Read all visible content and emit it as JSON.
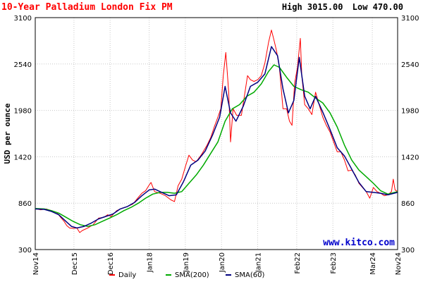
{
  "header": {
    "title": "10-Year Palladium London Fix PM",
    "high_label": "High 3015.00",
    "low_label": "Low 470.00"
  },
  "watermark": "www.kitco.com",
  "chart_data": {
    "type": "line",
    "title": "10-Year Palladium London Fix PM",
    "xlabel": "",
    "ylabel": "USD per ounce",
    "ylim": [
      300,
      3100
    ],
    "xlim": [
      2014.85,
      2024.87
    ],
    "yticks": [
      300,
      860,
      1420,
      1980,
      2540,
      3100
    ],
    "ytick_labels": [
      "300",
      "860",
      "1420",
      "1980",
      "2540",
      "3100"
    ],
    "xticks": [
      {
        "label": "Nov14",
        "x": 2014.85
      },
      {
        "label": "Dec15",
        "x": 2015.92
      },
      {
        "label": "Dec16",
        "x": 2016.92
      },
      {
        "label": "Jan18",
        "x": 2018.0
      },
      {
        "label": "Jan19",
        "x": 2019.0
      },
      {
        "label": "Jan20",
        "x": 2020.0
      },
      {
        "label": "Jan21",
        "x": 2021.0
      },
      {
        "label": "Feb22",
        "x": 2022.08
      },
      {
        "label": "Feb23",
        "x": 2023.08
      },
      {
        "label": "Mar24",
        "x": 2024.17
      },
      {
        "label": "Nov24",
        "x": 2024.87
      }
    ],
    "grid": true,
    "legend_position": "bottom",
    "high": 3015.0,
    "low": 470.0,
    "series": [
      {
        "name": "Daily",
        "color": "#ff0000",
        "points": [
          [
            2014.85,
            795
          ],
          [
            2015.0,
            780
          ],
          [
            2015.15,
            790
          ],
          [
            2015.3,
            770
          ],
          [
            2015.45,
            745
          ],
          [
            2015.55,
            690
          ],
          [
            2015.65,
            640
          ],
          [
            2015.72,
            590
          ],
          [
            2015.8,
            560
          ],
          [
            2015.9,
            555
          ],
          [
            2016.0,
            560
          ],
          [
            2016.08,
            505
          ],
          [
            2016.15,
            530
          ],
          [
            2016.3,
            560
          ],
          [
            2016.45,
            600
          ],
          [
            2016.6,
            680
          ],
          [
            2016.75,
            690
          ],
          [
            2016.85,
            720
          ],
          [
            2016.95,
            700
          ],
          [
            2017.1,
            770
          ],
          [
            2017.25,
            800
          ],
          [
            2017.4,
            820
          ],
          [
            2017.55,
            850
          ],
          [
            2017.7,
            930
          ],
          [
            2017.8,
            980
          ],
          [
            2017.9,
            1010
          ],
          [
            2018.0,
            1080
          ],
          [
            2018.05,
            1110
          ],
          [
            2018.15,
            1000
          ],
          [
            2018.3,
            980
          ],
          [
            2018.45,
            950
          ],
          [
            2018.6,
            900
          ],
          [
            2018.7,
            880
          ],
          [
            2018.8,
            1070
          ],
          [
            2018.9,
            1150
          ],
          [
            2019.0,
            1300
          ],
          [
            2019.1,
            1440
          ],
          [
            2019.2,
            1380
          ],
          [
            2019.3,
            1360
          ],
          [
            2019.45,
            1450
          ],
          [
            2019.6,
            1560
          ],
          [
            2019.7,
            1650
          ],
          [
            2019.8,
            1780
          ],
          [
            2019.9,
            1900
          ],
          [
            2019.98,
            2000
          ],
          [
            2020.05,
            2400
          ],
          [
            2020.12,
            2680
          ],
          [
            2020.2,
            2200
          ],
          [
            2020.25,
            1600
          ],
          [
            2020.32,
            2000
          ],
          [
            2020.42,
            1920
          ],
          [
            2020.55,
            1920
          ],
          [
            2020.65,
            2200
          ],
          [
            2020.72,
            2400
          ],
          [
            2020.8,
            2350
          ],
          [
            2020.9,
            2330
          ],
          [
            2021.0,
            2350
          ],
          [
            2021.1,
            2400
          ],
          [
            2021.2,
            2550
          ],
          [
            2021.3,
            2800
          ],
          [
            2021.38,
            2950
          ],
          [
            2021.45,
            2830
          ],
          [
            2021.52,
            2700
          ],
          [
            2021.6,
            2500
          ],
          [
            2021.7,
            2000
          ],
          [
            2021.8,
            2000
          ],
          [
            2021.88,
            1850
          ],
          [
            2021.95,
            1800
          ],
          [
            2022.02,
            2300
          ],
          [
            2022.1,
            2500
          ],
          [
            2022.18,
            2850
          ],
          [
            2022.22,
            2400
          ],
          [
            2022.3,
            2050
          ],
          [
            2022.4,
            2000
          ],
          [
            2022.5,
            1930
          ],
          [
            2022.6,
            2200
          ],
          [
            2022.7,
            2050
          ],
          [
            2022.8,
            1900
          ],
          [
            2022.9,
            1800
          ],
          [
            2023.0,
            1720
          ],
          [
            2023.1,
            1600
          ],
          [
            2023.2,
            1480
          ],
          [
            2023.3,
            1480
          ],
          [
            2023.4,
            1380
          ],
          [
            2023.5,
            1250
          ],
          [
            2023.6,
            1260
          ],
          [
            2023.7,
            1200
          ],
          [
            2023.8,
            1100
          ],
          [
            2023.9,
            1050
          ],
          [
            2024.0,
            1000
          ],
          [
            2024.1,
            920
          ],
          [
            2024.2,
            1050
          ],
          [
            2024.3,
            1000
          ],
          [
            2024.4,
            980
          ],
          [
            2024.5,
            950
          ],
          [
            2024.6,
            960
          ],
          [
            2024.7,
            1000
          ],
          [
            2024.75,
            1150
          ],
          [
            2024.8,
            1020
          ],
          [
            2024.87,
            1000
          ]
        ]
      },
      {
        "name": "SMA(200)",
        "color": "#00aa00",
        "points": [
          [
            2014.85,
            795
          ],
          [
            2015.1,
            790
          ],
          [
            2015.3,
            770
          ],
          [
            2015.5,
            740
          ],
          [
            2015.7,
            690
          ],
          [
            2015.9,
            640
          ],
          [
            2016.1,
            600
          ],
          [
            2016.3,
            580
          ],
          [
            2016.5,
            600
          ],
          [
            2016.7,
            640
          ],
          [
            2016.9,
            680
          ],
          [
            2017.1,
            720
          ],
          [
            2017.3,
            770
          ],
          [
            2017.5,
            810
          ],
          [
            2017.7,
            860
          ],
          [
            2017.9,
            920
          ],
          [
            2018.1,
            970
          ],
          [
            2018.3,
            990
          ],
          [
            2018.5,
            990
          ],
          [
            2018.7,
            980
          ],
          [
            2018.9,
            1000
          ],
          [
            2019.1,
            1100
          ],
          [
            2019.3,
            1200
          ],
          [
            2019.5,
            1320
          ],
          [
            2019.7,
            1460
          ],
          [
            2019.9,
            1600
          ],
          [
            2020.1,
            1850
          ],
          [
            2020.3,
            2000
          ],
          [
            2020.5,
            2050
          ],
          [
            2020.7,
            2150
          ],
          [
            2020.9,
            2200
          ],
          [
            2021.1,
            2300
          ],
          [
            2021.3,
            2450
          ],
          [
            2021.45,
            2530
          ],
          [
            2021.6,
            2500
          ],
          [
            2021.8,
            2380
          ],
          [
            2022.0,
            2270
          ],
          [
            2022.2,
            2230
          ],
          [
            2022.4,
            2200
          ],
          [
            2022.6,
            2130
          ],
          [
            2022.8,
            2070
          ],
          [
            2023.0,
            1950
          ],
          [
            2023.2,
            1780
          ],
          [
            2023.4,
            1560
          ],
          [
            2023.6,
            1380
          ],
          [
            2023.8,
            1260
          ],
          [
            2024.0,
            1180
          ],
          [
            2024.2,
            1100
          ],
          [
            2024.4,
            1010
          ],
          [
            2024.6,
            970
          ],
          [
            2024.87,
            1000
          ]
        ]
      },
      {
        "name": "SMA(60)",
        "color": "#000080",
        "points": [
          [
            2014.85,
            790
          ],
          [
            2015.1,
            785
          ],
          [
            2015.3,
            760
          ],
          [
            2015.5,
            720
          ],
          [
            2015.7,
            640
          ],
          [
            2015.85,
            580
          ],
          [
            2016.0,
            560
          ],
          [
            2016.2,
            580
          ],
          [
            2016.4,
            620
          ],
          [
            2016.6,
            670
          ],
          [
            2016.8,
            700
          ],
          [
            2017.0,
            730
          ],
          [
            2017.2,
            790
          ],
          [
            2017.4,
            820
          ],
          [
            2017.6,
            870
          ],
          [
            2017.8,
            950
          ],
          [
            2018.0,
            1020
          ],
          [
            2018.15,
            1030
          ],
          [
            2018.35,
            990
          ],
          [
            2018.55,
            950
          ],
          [
            2018.75,
            960
          ],
          [
            2018.95,
            1120
          ],
          [
            2019.15,
            1320
          ],
          [
            2019.35,
            1380
          ],
          [
            2019.55,
            1490
          ],
          [
            2019.75,
            1680
          ],
          [
            2019.95,
            1900
          ],
          [
            2020.1,
            2270
          ],
          [
            2020.25,
            1950
          ],
          [
            2020.4,
            1850
          ],
          [
            2020.6,
            2030
          ],
          [
            2020.8,
            2270
          ],
          [
            2021.0,
            2320
          ],
          [
            2021.2,
            2420
          ],
          [
            2021.38,
            2750
          ],
          [
            2021.55,
            2640
          ],
          [
            2021.7,
            2240
          ],
          [
            2021.85,
            1950
          ],
          [
            2022.0,
            2100
          ],
          [
            2022.15,
            2620
          ],
          [
            2022.3,
            2150
          ],
          [
            2022.45,
            2000
          ],
          [
            2022.6,
            2150
          ],
          [
            2022.8,
            1960
          ],
          [
            2023.0,
            1750
          ],
          [
            2023.2,
            1530
          ],
          [
            2023.4,
            1430
          ],
          [
            2023.6,
            1270
          ],
          [
            2023.8,
            1110
          ],
          [
            2024.0,
            1000
          ],
          [
            2024.2,
            990
          ],
          [
            2024.4,
            980
          ],
          [
            2024.6,
            960
          ],
          [
            2024.87,
            990
          ]
        ]
      }
    ]
  }
}
